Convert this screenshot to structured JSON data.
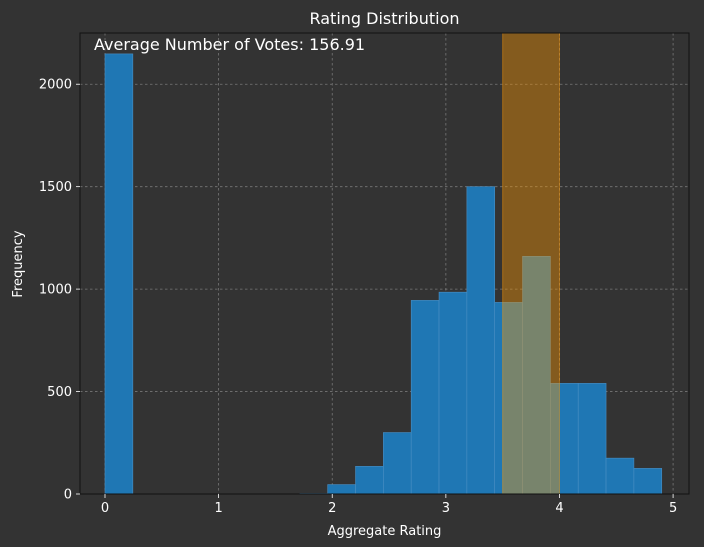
{
  "chart_data": {
    "type": "bar",
    "title": "Rating Distribution",
    "xlabel": "Aggregate Rating",
    "ylabel": "Frequency",
    "annotation": "Average Number of Votes: 156.91",
    "xlim": [
      -0.22,
      5.14
    ],
    "ylim": [
      0,
      2250
    ],
    "xticks": [
      "0",
      "1",
      "2",
      "3",
      "4",
      "5"
    ],
    "yticks": [
      "0",
      "500",
      "1000",
      "1500",
      "2000"
    ],
    "grid": true,
    "bin_width": 0.245,
    "bins": [
      {
        "x0": 0.0,
        "value": 2148
      },
      {
        "x0": 1.715,
        "value": 2
      },
      {
        "x0": 1.96,
        "value": 46
      },
      {
        "x0": 2.205,
        "value": 135
      },
      {
        "x0": 2.45,
        "value": 300
      },
      {
        "x0": 2.695,
        "value": 945
      },
      {
        "x0": 2.94,
        "value": 985
      },
      {
        "x0": 3.185,
        "value": 1500
      },
      {
        "x0": 3.43,
        "value": 935
      },
      {
        "x0": 3.675,
        "value": 1160
      },
      {
        "x0": 3.92,
        "value": 540
      },
      {
        "x0": 4.165,
        "value": 540
      },
      {
        "x0": 4.41,
        "value": 175
      },
      {
        "x0": 4.655,
        "value": 125
      }
    ],
    "highlight_span": {
      "x0": 3.5,
      "x1": 4.0
    },
    "colors": {
      "bar": "#1f77b4",
      "bar_edge": "#4a8fc4",
      "span": "#ff9900",
      "background": "#333333",
      "grid": "#777777",
      "text": "#ffffff"
    }
  }
}
